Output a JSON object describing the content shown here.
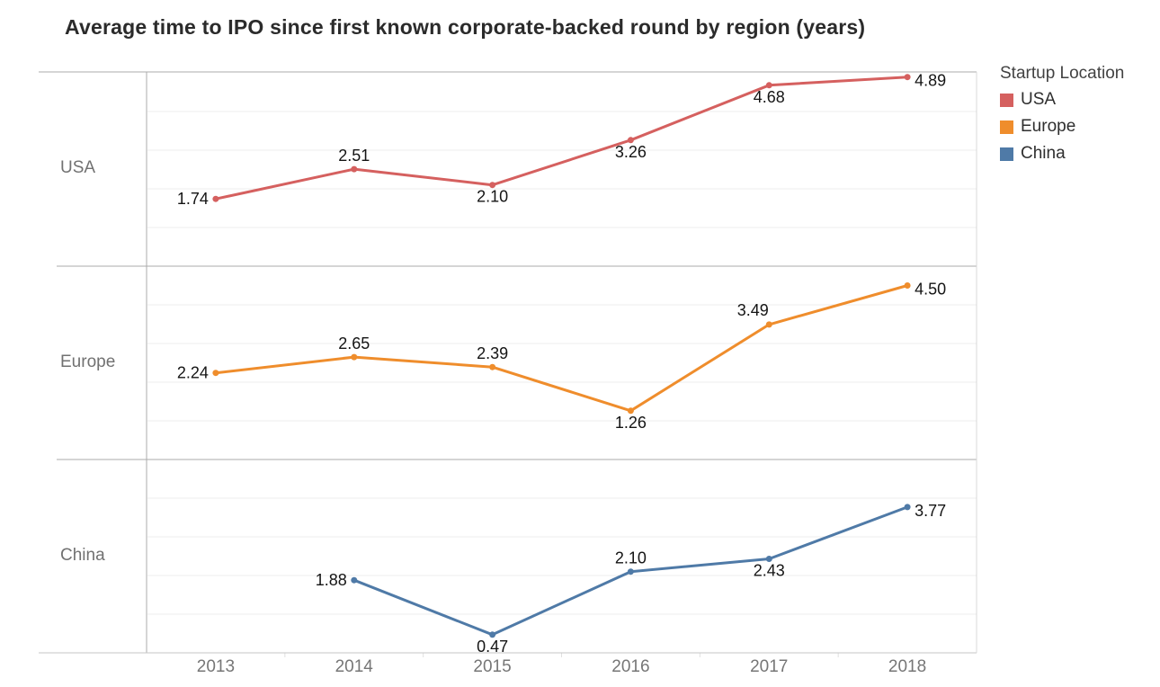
{
  "title": "Average time to IPO since first known corporate-backed round by region (years)",
  "legend": {
    "title": "Startup Location",
    "items": [
      {
        "label": "USA",
        "color": "#d5605f"
      },
      {
        "label": "Europe",
        "color": "#ef8d2c"
      },
      {
        "label": "China",
        "color": "#4f7aa7"
      }
    ]
  },
  "chart_data": {
    "type": "line",
    "title": "Average time to IPO since first known corporate-backed round by region (years)",
    "facets": [
      "USA",
      "Europe",
      "China"
    ],
    "categories": [
      "2013",
      "2014",
      "2015",
      "2016",
      "2017",
      "2018"
    ],
    "series": [
      {
        "name": "USA",
        "color": "#d5605f",
        "values": [
          1.74,
          2.51,
          2.1,
          3.26,
          4.68,
          4.89
        ],
        "point_labels": [
          "1.74",
          "2.51",
          "2.10",
          "3.26",
          "4.68",
          "4.89"
        ],
        "label_pos": [
          "left",
          "above",
          "below",
          "below",
          "below",
          "right"
        ]
      },
      {
        "name": "Europe",
        "color": "#ef8d2c",
        "values": [
          2.24,
          2.65,
          2.39,
          1.26,
          3.49,
          4.5
        ],
        "point_labels": [
          "2.24",
          "2.65",
          "2.39",
          "1.26",
          "3.49",
          "4.50"
        ],
        "label_pos": [
          "left",
          "above",
          "above",
          "below",
          "above-left",
          "right"
        ]
      },
      {
        "name": "China",
        "color": "#4f7aa7",
        "values": [
          null,
          1.88,
          0.47,
          2.1,
          2.43,
          3.77
        ],
        "point_labels": [
          null,
          "1.88",
          "0.47",
          "2.10",
          "2.43",
          "3.77"
        ],
        "label_pos": [
          null,
          "left",
          "below",
          "above",
          "below",
          "right"
        ]
      }
    ],
    "ylim": [
      0,
      5.02
    ],
    "y_gridlines": [
      1,
      2,
      3,
      4
    ],
    "grid": "horizontal only",
    "legend_position": "top-right",
    "xlabel": "",
    "ylabel": ""
  }
}
